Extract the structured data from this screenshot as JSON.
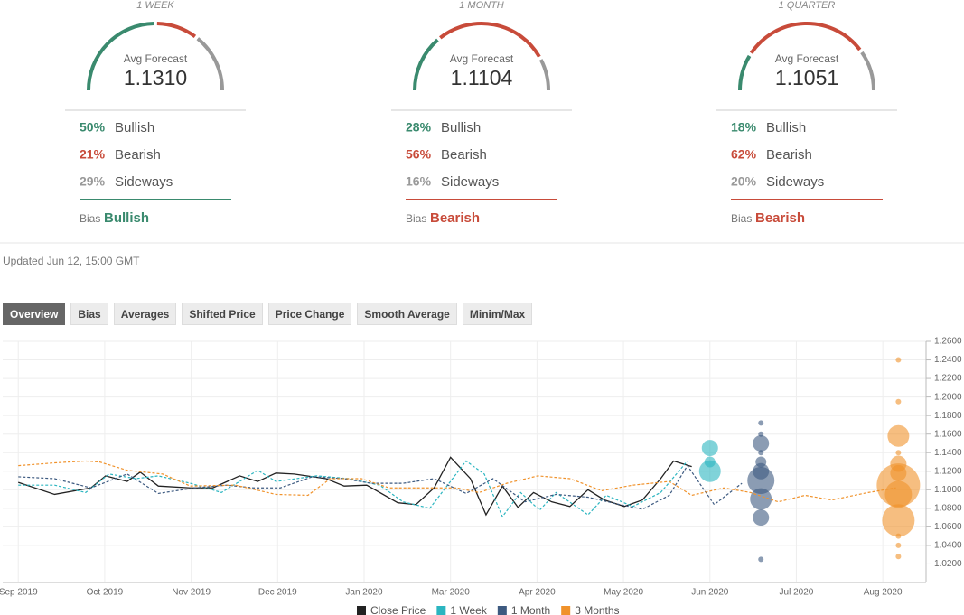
{
  "panels": [
    {
      "period": "1 WEEK",
      "avg_label": "Avg Forecast",
      "avg_value": "1.1310",
      "stats": [
        {
          "label": "50%",
          "value": 50,
          "name": "Bullish",
          "color": "#3a8a6e"
        },
        {
          "label": "21%",
          "value": 21,
          "name": "Bearish",
          "color": "#c84b3a"
        },
        {
          "label": "29%",
          "value": 29,
          "name": "Sideways",
          "color": "#999999"
        }
      ],
      "bias_label": "Bias",
      "bias": "Bullish",
      "bias_color": "#3a8a6e"
    },
    {
      "period": "1 MONTH",
      "avg_label": "Avg Forecast",
      "avg_value": "1.1104",
      "stats": [
        {
          "label": "28%",
          "value": 28,
          "name": "Bullish",
          "color": "#3a8a6e"
        },
        {
          "label": "56%",
          "value": 56,
          "name": "Bearish",
          "color": "#c84b3a"
        },
        {
          "label": "16%",
          "value": 16,
          "name": "Sideways",
          "color": "#999999"
        }
      ],
      "bias_label": "Bias",
      "bias": "Bearish",
      "bias_color": "#c84b3a"
    },
    {
      "period": "1 QUARTER",
      "avg_label": "Avg Forecast",
      "avg_value": "1.1051",
      "stats": [
        {
          "label": "18%",
          "value": 18,
          "name": "Bullish",
          "color": "#3a8a6e"
        },
        {
          "label": "62%",
          "value": 62,
          "name": "Bearish",
          "color": "#c84b3a"
        },
        {
          "label": "20%",
          "value": 20,
          "name": "Sideways",
          "color": "#999999"
        }
      ],
      "bias_label": "Bias",
      "bias": "Bearish",
      "bias_color": "#c84b3a"
    }
  ],
  "updated": "Updated Jun 12, 15:00 GMT",
  "tabs": [
    "Overview",
    "Bias",
    "Averages",
    "Shifted Price",
    "Price Change",
    "Smooth Average",
    "Minim/Max"
  ],
  "active_tab": 0,
  "chart_data": {
    "type": "line",
    "grid": true,
    "xlim": [
      -0.18,
      10.5
    ],
    "xticks": [
      {
        "value": 0,
        "label": "Sep 2019"
      },
      {
        "value": 1,
        "label": "Oct 2019"
      },
      {
        "value": 2,
        "label": "Nov 2019"
      },
      {
        "value": 3,
        "label": "Dec 2019"
      },
      {
        "value": 4,
        "label": "Jan 2020"
      },
      {
        "value": 5,
        "label": "Mar 2020"
      },
      {
        "value": 6,
        "label": "Apr 2020"
      },
      {
        "value": 7,
        "label": "May 2020"
      },
      {
        "value": 8,
        "label": "Jun 2020"
      },
      {
        "value": 9,
        "label": "Jul 2020"
      },
      {
        "value": 10,
        "label": "Aug 2020"
      }
    ],
    "ylim": [
      1.0,
      1.26
    ],
    "yticks": [
      {
        "value": 1.02,
        "label": "1.0200"
      },
      {
        "value": 1.04,
        "label": "1.0400"
      },
      {
        "value": 1.06,
        "label": "1.0600"
      },
      {
        "value": 1.08,
        "label": "1.0800"
      },
      {
        "value": 1.1,
        "label": "1.1000"
      },
      {
        "value": 1.12,
        "label": "1.1200"
      },
      {
        "value": 1.14,
        "label": "1.1400"
      },
      {
        "value": 1.16,
        "label": "1.1600"
      },
      {
        "value": 1.18,
        "label": "1.1800"
      },
      {
        "value": 1.2,
        "label": "1.2000"
      },
      {
        "value": 1.22,
        "label": "1.2200"
      },
      {
        "value": 1.24,
        "label": "1.2400"
      },
      {
        "value": 1.26,
        "label": "1.2600"
      }
    ],
    "series": [
      {
        "name": "Close Price",
        "color": "#222222",
        "dashed": false,
        "x": [
          0,
          0.42,
          0.84,
          1.01,
          1.26,
          1.41,
          1.62,
          1.99,
          2.25,
          2.56,
          2.77,
          2.98,
          3.19,
          3.56,
          3.77,
          4.03,
          4.39,
          4.6,
          4.81,
          5.0,
          5.23,
          5.41,
          5.6,
          5.78,
          5.96,
          6.17,
          6.38,
          6.59,
          6.78,
          7.01,
          7.22,
          7.43,
          7.58,
          7.79
        ],
        "values": [
          1.108,
          1.095,
          1.102,
          1.115,
          1.109,
          1.119,
          1.104,
          1.102,
          1.102,
          1.115,
          1.109,
          1.118,
          1.117,
          1.112,
          1.104,
          1.105,
          1.086,
          1.084,
          1.102,
          1.135,
          1.112,
          1.073,
          1.104,
          1.081,
          1.097,
          1.087,
          1.082,
          1.1,
          1.089,
          1.082,
          1.089,
          1.112,
          1.131,
          1.125
        ]
      },
      {
        "name": "1 Week",
        "color": "#2bb5c0",
        "dashed": true,
        "x": [
          0,
          0.42,
          0.78,
          1.05,
          1.36,
          1.62,
          1.99,
          2.35,
          2.77,
          2.98,
          3.45,
          3.82,
          4.18,
          4.45,
          4.76,
          5.18,
          5.39,
          5.6,
          5.81,
          6.03,
          6.22,
          6.59,
          6.8,
          7.11,
          7.43,
          7.74
        ],
        "values": [
          1.105,
          1.105,
          1.097,
          1.117,
          1.112,
          1.115,
          1.107,
          1.097,
          1.121,
          1.109,
          1.115,
          1.112,
          1.105,
          1.087,
          1.08,
          1.131,
          1.117,
          1.071,
          1.097,
          1.078,
          1.097,
          1.073,
          1.094,
          1.082,
          1.097,
          1.131
        ],
        "forecast": {
          "x": 8.0,
          "values": [
            1.145,
            1.13,
            1.12
          ],
          "sizes": [
            3,
            2,
            4
          ]
        }
      },
      {
        "name": "1 Month",
        "color": "#3d5a80",
        "dashed": true,
        "x": [
          0,
          0.42,
          0.84,
          1.26,
          1.62,
          2.04,
          2.41,
          2.72,
          3.03,
          3.4,
          3.77,
          4.08,
          4.45,
          4.81,
          5.18,
          5.49,
          5.86,
          6.22,
          6.59,
          6.96,
          7.22,
          7.53,
          7.74,
          8.05,
          8.37
        ],
        "values": [
          1.114,
          1.112,
          1.102,
          1.117,
          1.096,
          1.102,
          1.105,
          1.102,
          1.102,
          1.114,
          1.112,
          1.107,
          1.107,
          1.112,
          1.096,
          1.112,
          1.087,
          1.095,
          1.092,
          1.084,
          1.079,
          1.094,
          1.126,
          1.084,
          1.107
        ],
        "forecast": {
          "x": 8.59,
          "values": [
            1.172,
            1.16,
            1.15,
            1.14,
            1.13,
            1.12,
            1.11,
            1.09,
            1.07,
            1.025
          ],
          "sizes": [
            1,
            1,
            3,
            1,
            2,
            3,
            5,
            4,
            3,
            1
          ]
        }
      },
      {
        "name": "3 Months",
        "color": "#f0922b",
        "dashed": true,
        "x": [
          0,
          0.42,
          0.78,
          0.94,
          1.26,
          1.67,
          1.99,
          2.51,
          2.98,
          3.35,
          3.61,
          3.97,
          4.29,
          4.71,
          5.07,
          5.33,
          5.65,
          6.01,
          6.38,
          6.75,
          7.11,
          7.53,
          7.79,
          8.16,
          8.47,
          8.79,
          9.1,
          9.41,
          9.83,
          10.15
        ],
        "values": [
          1.126,
          1.129,
          1.131,
          1.13,
          1.121,
          1.117,
          1.104,
          1.105,
          1.095,
          1.094,
          1.112,
          1.112,
          1.102,
          1.102,
          1.102,
          1.097,
          1.107,
          1.115,
          1.112,
          1.099,
          1.105,
          1.109,
          1.094,
          1.102,
          1.097,
          1.087,
          1.094,
          1.089,
          1.097,
          1.102
        ],
        "forecast": {
          "x": 10.18,
          "values": [
            1.24,
            1.195,
            1.158,
            1.14,
            1.128,
            1.118,
            1.105,
            1.095,
            1.067,
            1.05,
            1.04,
            1.028
          ],
          "sizes": [
            1,
            1,
            4,
            1,
            3,
            3,
            8,
            5,
            6,
            1,
            1,
            1
          ]
        }
      }
    ]
  }
}
